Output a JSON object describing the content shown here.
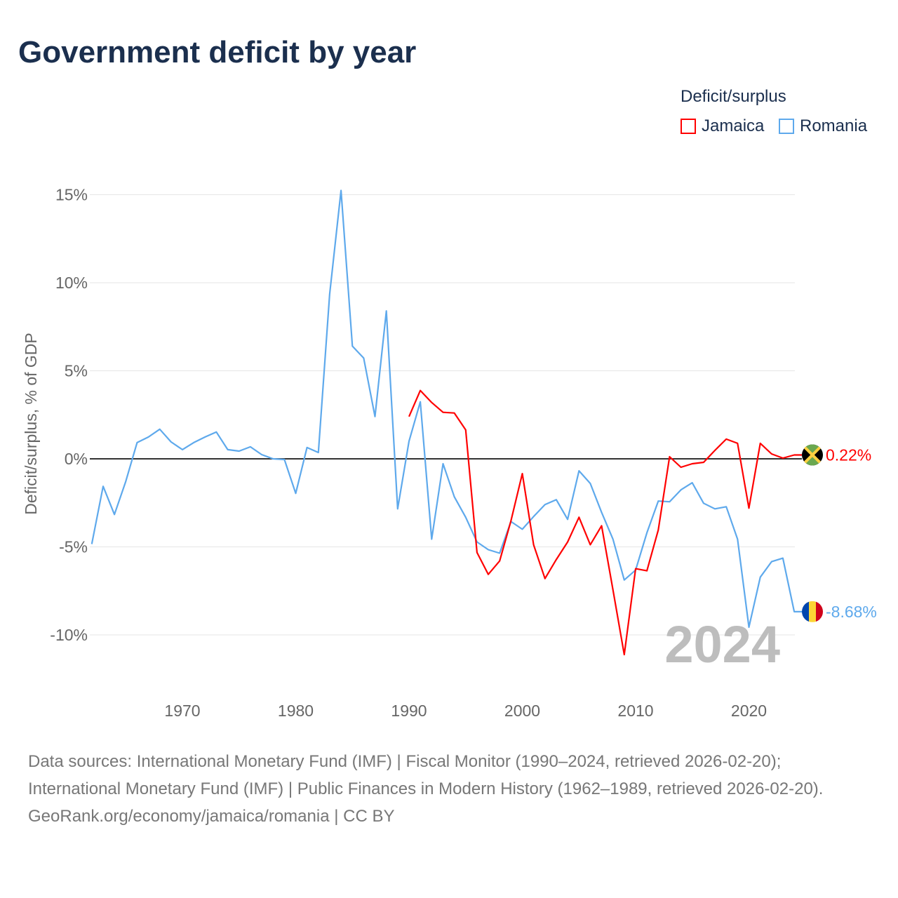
{
  "title": "Government deficit by year",
  "legend_title": "Deficit/surplus",
  "chart_data": {
    "type": "line",
    "title": "Government deficit by year",
    "ylabel": "Deficit/surplus, % of GDP",
    "xlabel": "",
    "ylim": [
      -12,
      16
    ],
    "xlim": [
      1962,
      2024
    ],
    "yticks": [
      {
        "v": 15,
        "label": "15%"
      },
      {
        "v": 10,
        "label": "10%"
      },
      {
        "v": 5,
        "label": "5%"
      },
      {
        "v": 0,
        "label": "0%"
      },
      {
        "v": -5,
        "label": "-5%"
      },
      {
        "v": -10,
        "label": "-10%"
      }
    ],
    "xticks": [
      {
        "v": 1970,
        "label": "1970"
      },
      {
        "v": 1980,
        "label": "1980"
      },
      {
        "v": 1990,
        "label": "1990"
      },
      {
        "v": 2000,
        "label": "2000"
      },
      {
        "v": 2010,
        "label": "2010"
      },
      {
        "v": 2020,
        "label": "2020"
      }
    ],
    "year_watermark": "2024",
    "legend_placement": "top-right",
    "series": [
      {
        "name": "Jamaica",
        "color": "#ff0000",
        "end_label": "0.22%",
        "flag": "jamaica-flag",
        "start": 1990,
        "values": [
          2.4,
          3.88,
          3.2,
          2.64,
          2.6,
          1.64,
          -5.32,
          -6.56,
          -5.8,
          -3.52,
          -0.84,
          -4.88,
          -6.8,
          -5.72,
          -4.72,
          -3.32,
          -4.88,
          -3.8,
          -7.44,
          -11.12,
          -6.24,
          -6.36,
          -4.04,
          0.12,
          -0.48,
          -0.28,
          -0.2,
          0.48,
          1.12,
          0.88,
          -2.8,
          0.88,
          0.28,
          0.04,
          0.22
        ]
      },
      {
        "name": "Romania",
        "color": "#5ea9ec",
        "end_label": "-8.68%",
        "flag": "romania-flag",
        "start": 1962,
        "values": [
          -4.84,
          -1.56,
          -3.16,
          -1.28,
          0.92,
          1.24,
          1.68,
          0.96,
          0.52,
          0.92,
          1.24,
          1.52,
          0.52,
          0.44,
          0.68,
          0.24,
          0,
          -0.04,
          -1.96,
          0.64,
          0.36,
          9.36,
          15.24,
          6.4,
          5.72,
          2.4,
          8.4,
          -2.84,
          1.0,
          3.24,
          -4.56,
          -0.28,
          -2.16,
          -3.32,
          -4.72,
          -5.16,
          -5.36,
          -3.56,
          -4.0,
          -3.28,
          -2.6,
          -2.32,
          -3.44,
          -0.68,
          -1.4,
          -3.04,
          -4.56,
          -6.88,
          -6.32,
          -4.2,
          -2.4,
          -2.44,
          -1.76,
          -1.36,
          -2.52,
          -2.84,
          -2.72,
          -4.56,
          -9.56,
          -6.72,
          -5.84,
          -5.64,
          -8.68
        ]
      }
    ]
  },
  "footer": {
    "sources": "Data sources: International Monetary Fund (IMF) | Fiscal Monitor (1990–2024, retrieved 2026-02-20); International Monetary Fund (IMF) | Public Finances in Modern History (1962–1989, retrieved 2026-02-20).",
    "credit": "GeoRank.org/economy/jamaica/romania | CC BY"
  }
}
